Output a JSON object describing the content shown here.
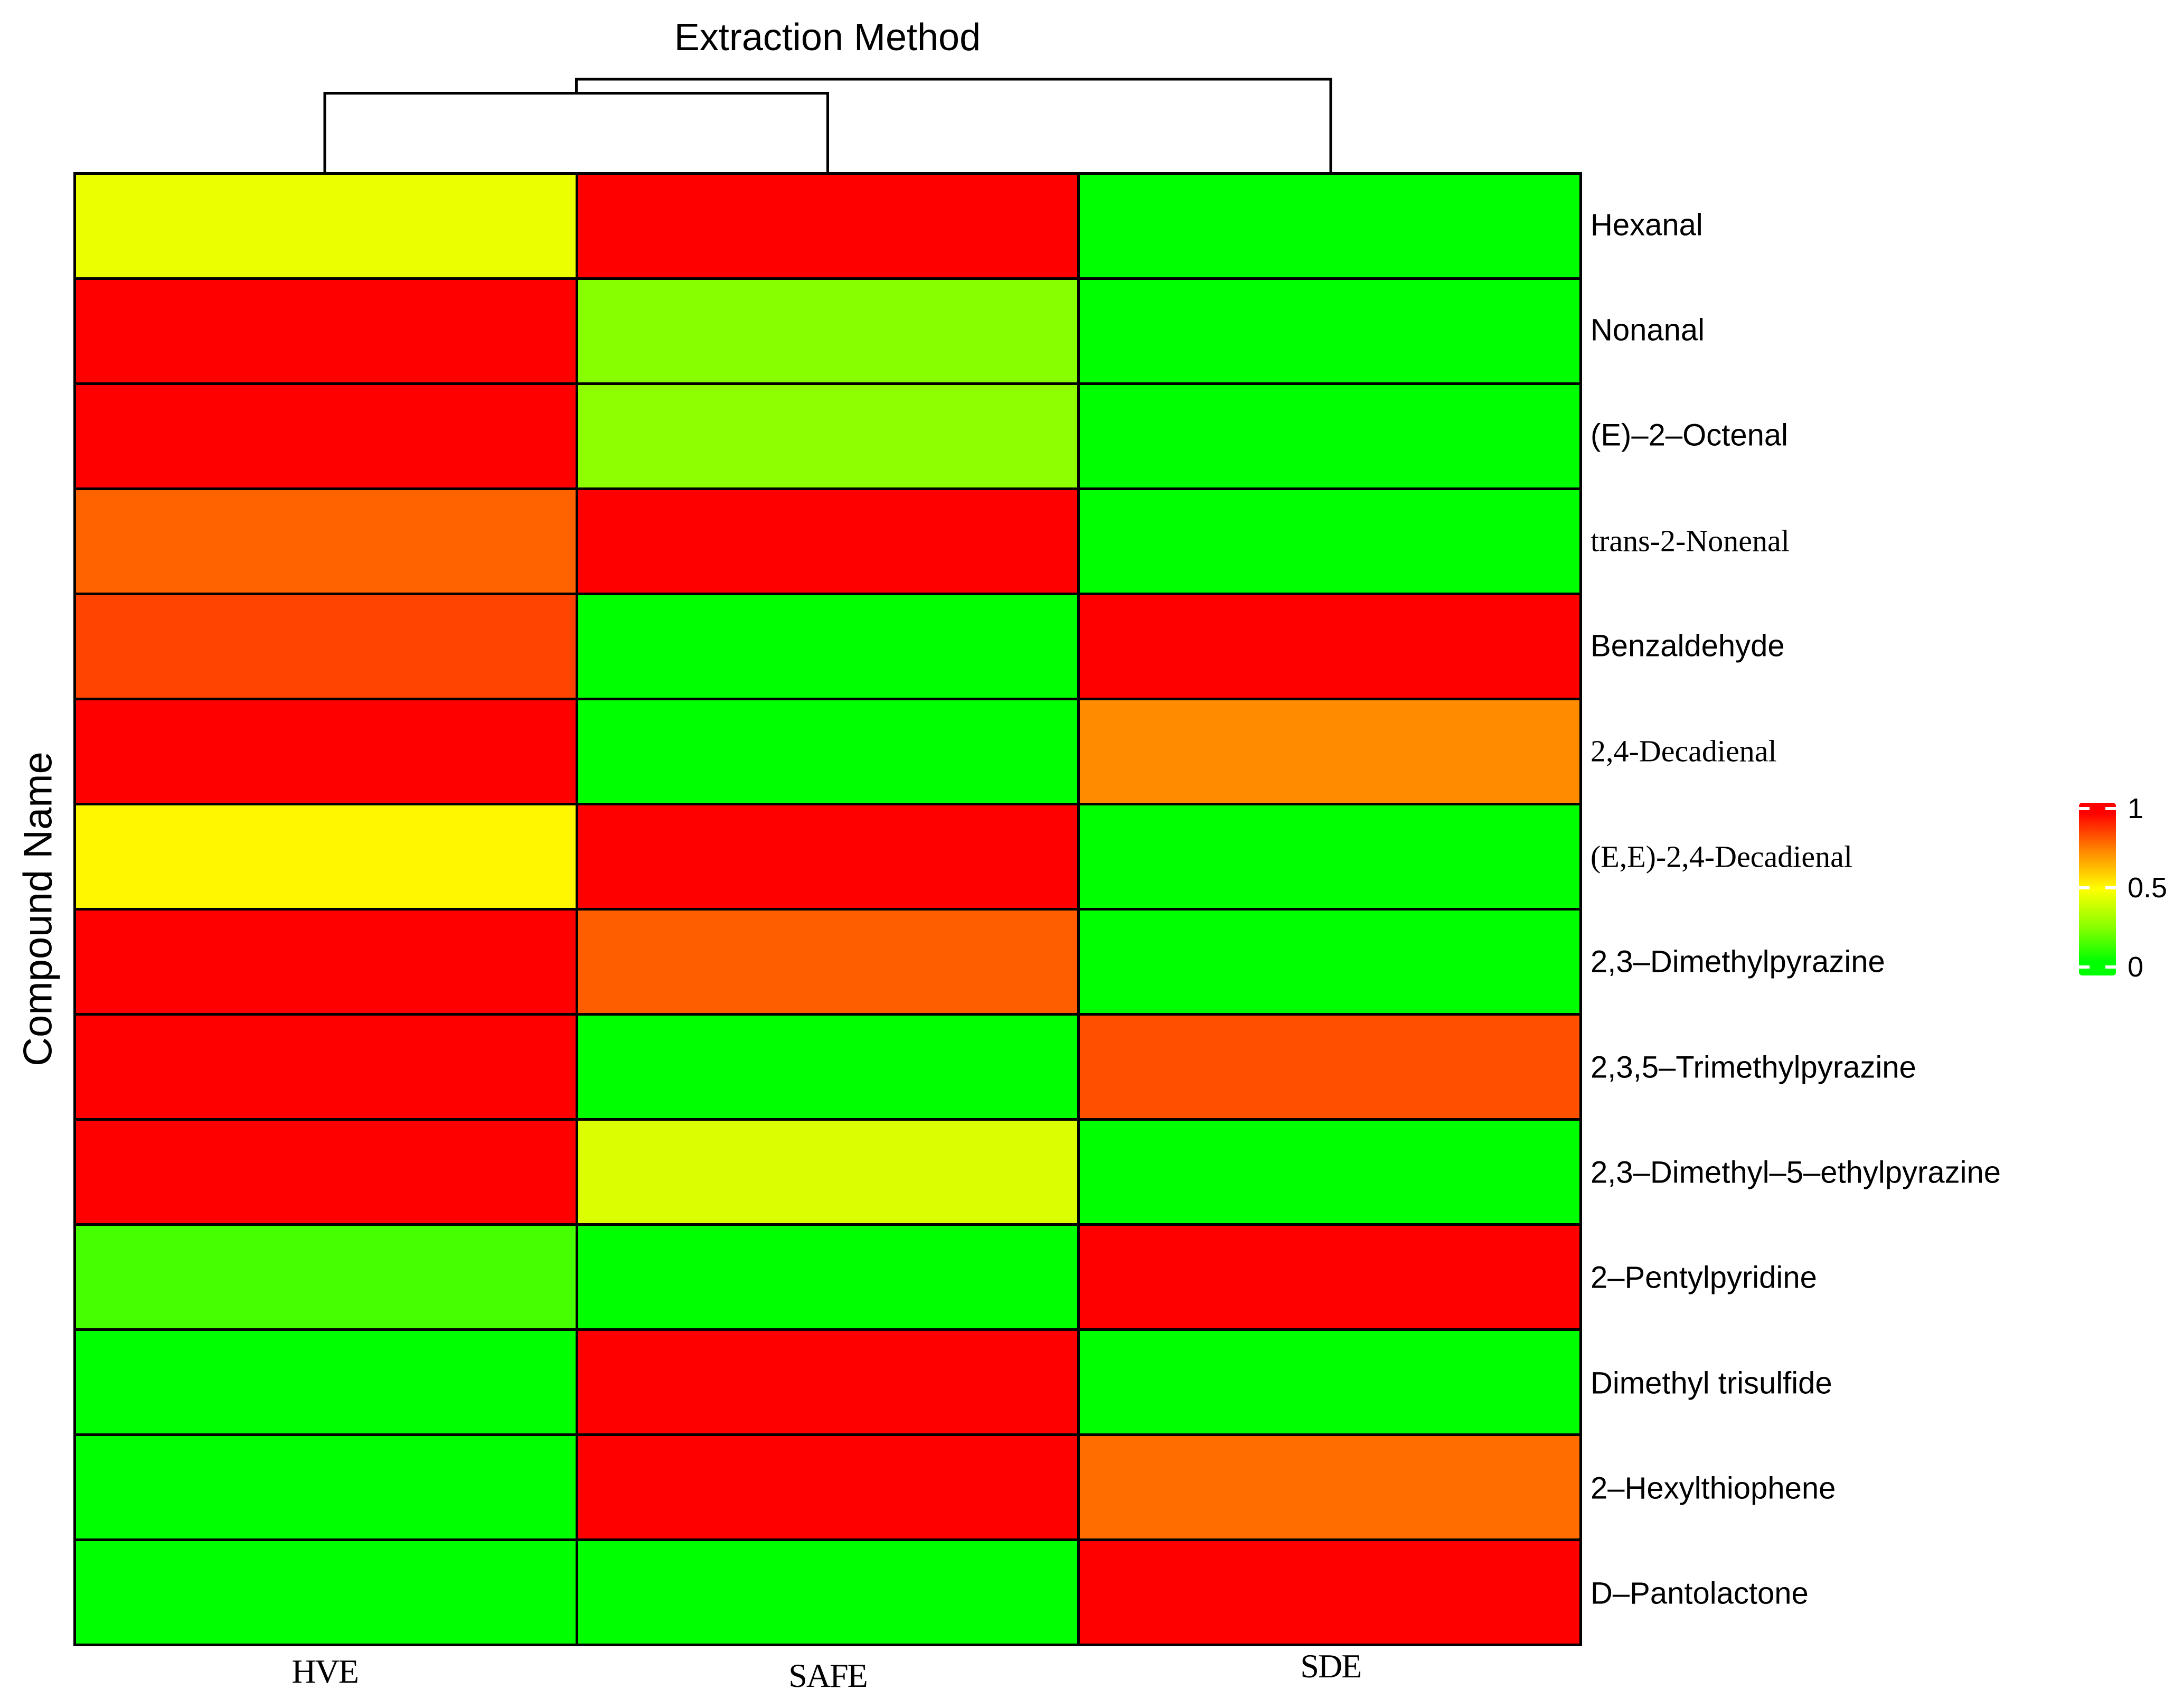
{
  "figure": {
    "title": "Extraction Method",
    "y_axis_title": "Compound Name"
  },
  "legend": {
    "ticks": [
      {
        "label": "1",
        "value": 1
      },
      {
        "label": "0.5",
        "value": 0.5
      },
      {
        "label": "0",
        "value": 0
      }
    ],
    "gradient_top_color": "#FF0000",
    "gradient_mid_color": "#FFFF00",
    "gradient_bottom_color": "#00FF00"
  },
  "chart_data": {
    "type": "heatmap",
    "title": "Extraction Method",
    "ylabel": "Compound Name",
    "value_range": [
      0,
      1
    ],
    "colormap": "green-yellow-red (0=green, 0.5=yellow, 1=red)",
    "legend_ticks": [
      1,
      0.5,
      0
    ],
    "columns": [
      {
        "label": "HVE"
      },
      {
        "label": "SAFE"
      },
      {
        "label": "SDE"
      }
    ],
    "dendrogram": {
      "axis": "columns",
      "leaf_order": [
        "HVE",
        "SAFE",
        "SDE"
      ],
      "merges": [
        {
          "join": [
            "HVE",
            "SAFE"
          ],
          "height_frac": 0.85
        },
        {
          "join": [
            "HVE+SAFE",
            "SDE"
          ],
          "height_frac": 1.0
        }
      ]
    },
    "rows": [
      {
        "label": "Hexanal",
        "serif_font": false,
        "values": [
          0.45,
          1.0,
          0.0
        ],
        "colors": [
          "#EBFF00",
          "#FF0000",
          "#00FF00"
        ]
      },
      {
        "label": "Nonanal",
        "serif_font": false,
        "values": [
          1.0,
          0.26,
          0.0
        ],
        "colors": [
          "#FF0000",
          "#87FF00",
          "#00FF00"
        ]
      },
      {
        "label": "(E)–2–Octenal",
        "serif_font": false,
        "values": [
          1.0,
          0.27,
          0.0
        ],
        "colors": [
          "#FF0000",
          "#8DFF00",
          "#00FF00"
        ]
      },
      {
        "label": "trans-2-Nonenal",
        "serif_font": true,
        "values": [
          0.8,
          1.0,
          0.0
        ],
        "colors": [
          "#FF6300",
          "#FF0000",
          "#00FF00"
        ]
      },
      {
        "label": "Benzaldehyde",
        "serif_font": false,
        "values": [
          0.86,
          0.0,
          1.0
        ],
        "colors": [
          "#FF4300",
          "#00FF00",
          "#FF0000"
        ]
      },
      {
        "label": "2,4-Decadienal",
        "serif_font": true,
        "values": [
          1.0,
          0.0,
          0.73
        ],
        "colors": [
          "#FF0000",
          "#00FF00",
          "#FF8C00"
        ]
      },
      {
        "label": "(E,E)-2,4-Decadienal",
        "serif_font": true,
        "values": [
          0.52,
          1.0,
          0.0
        ],
        "colors": [
          "#FFF700",
          "#FF0000",
          "#00FF00"
        ]
      },
      {
        "label": "2,3–Dimethylpyrazine",
        "serif_font": false,
        "values": [
          1.0,
          0.81,
          0.0
        ],
        "colors": [
          "#FF0000",
          "#FF5E00",
          "#00FF00"
        ]
      },
      {
        "label": "2,3,5–Trimethylpyrazine",
        "serif_font": false,
        "values": [
          1.0,
          0.0,
          0.84
        ],
        "colors": [
          "#FF0000",
          "#00FF00",
          "#FF5000"
        ]
      },
      {
        "label": "2,3–Dimethyl–5–ethylpyrazine",
        "serif_font": false,
        "values": [
          1.0,
          0.43,
          0.0
        ],
        "colors": [
          "#FF0000",
          "#DBFF00",
          "#00FF00"
        ]
      },
      {
        "label": "2–Pentylpyridine",
        "serif_font": false,
        "values": [
          0.14,
          0.0,
          1.0
        ],
        "colors": [
          "#46FF00",
          "#00FF00",
          "#FF0000"
        ]
      },
      {
        "label": "Dimethyl trisulfide",
        "serif_font": false,
        "values": [
          0.0,
          1.0,
          0.0
        ],
        "colors": [
          "#00FF00",
          "#FF0000",
          "#00FF00"
        ]
      },
      {
        "label": "2–Hexylthiophene",
        "serif_font": false,
        "values": [
          0.0,
          1.0,
          0.79
        ],
        "colors": [
          "#00FF00",
          "#FF0000",
          "#FF6D00"
        ]
      },
      {
        "label": "D–Pantolactone",
        "serif_font": false,
        "values": [
          0.0,
          0.0,
          1.0
        ],
        "colors": [
          "#00FF00",
          "#00FF00",
          "#FF0000"
        ]
      }
    ]
  }
}
